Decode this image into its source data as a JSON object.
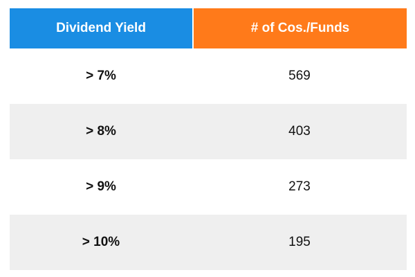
{
  "table": {
    "headers": [
      "Dividend Yield",
      "# of Cos./Funds"
    ],
    "header_colors": [
      "#1a8de3",
      "#ff7a1a"
    ],
    "rows": [
      {
        "yield": "> 7%",
        "count": "569"
      },
      {
        "yield": "> 8%",
        "count": "403"
      },
      {
        "yield": "> 9%",
        "count": "273"
      },
      {
        "yield": "> 10%",
        "count": "195"
      }
    ]
  }
}
